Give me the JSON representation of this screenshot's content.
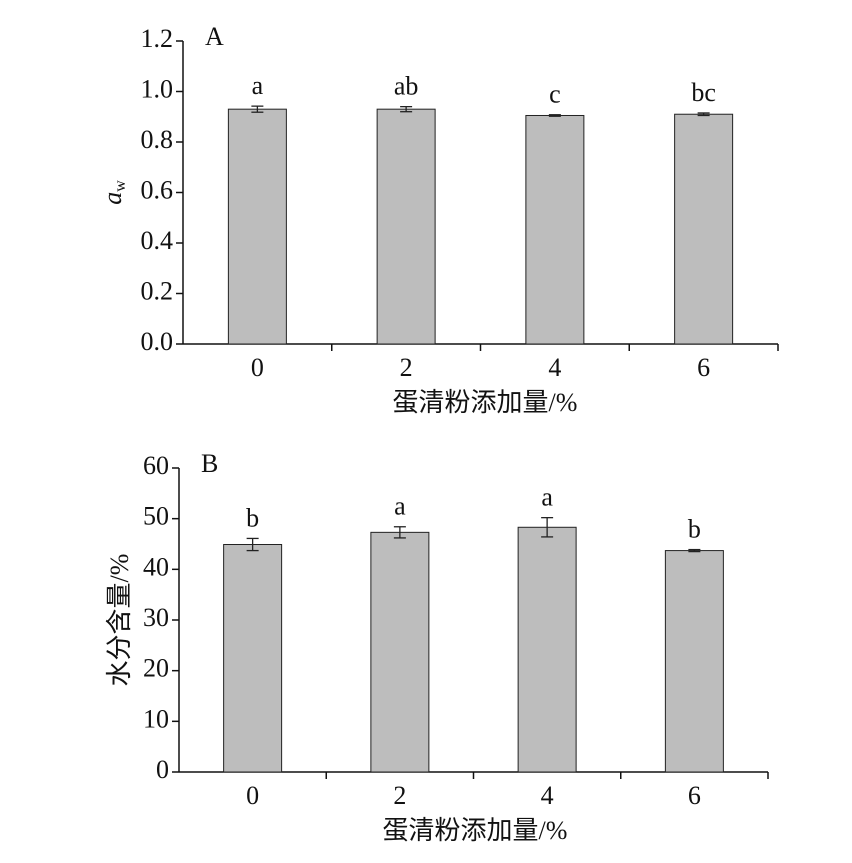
{
  "chart_data": [
    {
      "type": "bar",
      "label": "A",
      "ylabel": "a",
      "ylabel_subscript": "w",
      "xlabel": "蛋清粉添加量/%",
      "categories": [
        "0",
        "2",
        "4",
        "6"
      ],
      "values": [
        0.93,
        0.93,
        0.905,
        0.91
      ],
      "errors": [
        0.012,
        0.01,
        0.003,
        0.005
      ],
      "letters": [
        "a",
        "ab",
        "c",
        "bc"
      ],
      "color": "#bdbdbd",
      "ylim": [
        0,
        1.2
      ],
      "yticks": [
        {
          "value": 0,
          "label": "0.0"
        },
        0.2,
        0.4,
        0.6,
        0.8,
        {
          "value": 1,
          "label": "1.0"
        },
        1.2
      ]
    },
    {
      "type": "bar",
      "label": "B",
      "ylabel": "水分含量/%",
      "xlabel": "蛋清粉添加量/%",
      "categories": [
        "0",
        "2",
        "4",
        "6"
      ],
      "values": [
        44.9,
        47.3,
        48.3,
        43.7
      ],
      "errors": [
        1.2,
        1.1,
        1.9,
        0.2
      ],
      "letters": [
        "b",
        "a",
        "a",
        "b"
      ],
      "color": "#bdbdbd",
      "ylim": [
        0,
        60
      ],
      "yticks": [
        0,
        10,
        20,
        30,
        40,
        50,
        60
      ]
    }
  ]
}
